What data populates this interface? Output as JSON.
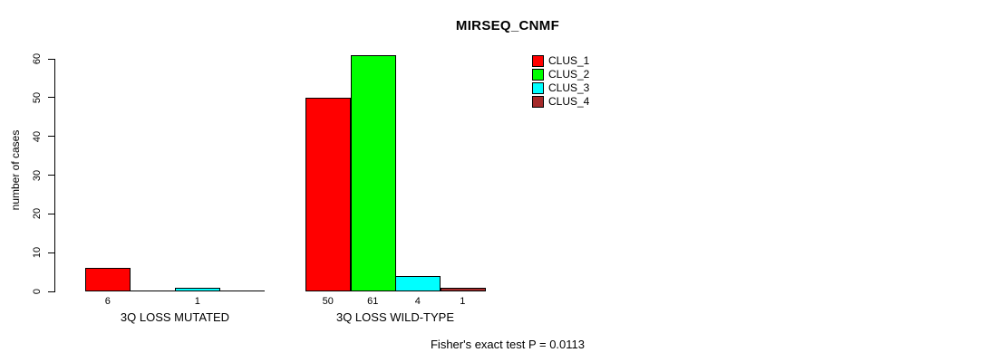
{
  "chart_data": {
    "type": "bar",
    "title": "MIRSEQ_CNMF",
    "xlabel": "",
    "ylabel": "number of cases",
    "ylim": [
      0,
      60
    ],
    "yticks": [
      0,
      10,
      20,
      30,
      40,
      50,
      60
    ],
    "grid": false,
    "legend_position": "top-right",
    "categories": [
      "3Q LOSS MUTATED",
      "3Q LOSS WILD-TYPE"
    ],
    "series": [
      {
        "name": "CLUS_1",
        "color": "#FF0000",
        "values": [
          6,
          50
        ]
      },
      {
        "name": "CLUS_2",
        "color": "#00FF00",
        "values": [
          0,
          61
        ]
      },
      {
        "name": "CLUS_3",
        "color": "#00FFFF",
        "values": [
          1,
          4
        ]
      },
      {
        "name": "CLUS_4",
        "color": "#A52A2A",
        "values": [
          0,
          1
        ]
      }
    ],
    "bar_value_labels": [
      [
        "6",
        "",
        "1",
        ""
      ],
      [
        "50",
        "61",
        "4",
        "1"
      ]
    ],
    "annotation": "Fisher's exact test P = 0.0113",
    "axis_color": "#000000",
    "background_color": "#FFFFFF"
  }
}
